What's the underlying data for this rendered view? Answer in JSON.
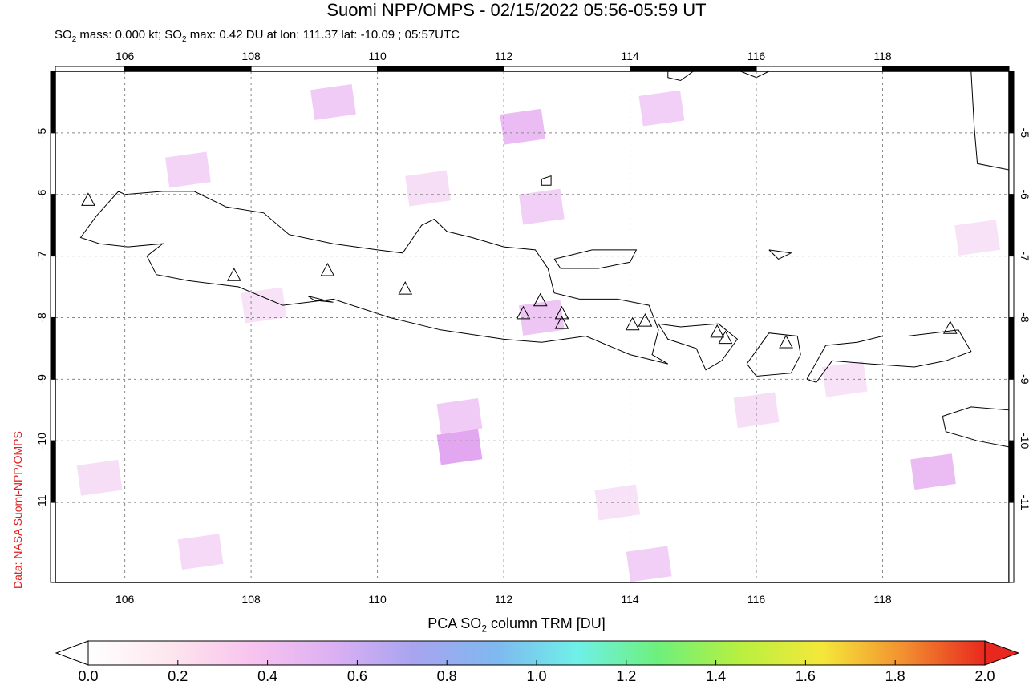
{
  "title": "Suomi NPP/OMPS - 02/15/2022 05:56-05:59 UT",
  "subtitle": {
    "prefix": "SO",
    "sub": "2",
    "mid": " mass: 0.000 kt; SO",
    "sub2": "2",
    "rest": " max: 0.42 DU at lon: 111.37 lat: -10.09 ; 05:57UTC"
  },
  "credit": "Data: NASA Suomi-NPP/OMPS",
  "map": {
    "lon_range": [
      104.9,
      120.0
    ],
    "lat_range": [
      -12.3,
      -4.0
    ],
    "lon_ticks": [
      106,
      108,
      110,
      112,
      114,
      116,
      118
    ],
    "lon_tick_labels": [
      "106",
      "108",
      "110",
      "112",
      "114",
      "116",
      "118"
    ],
    "lat_ticks": [
      -5,
      -6,
      -7,
      -8,
      -9,
      -10,
      -11
    ],
    "lat_tick_labels": [
      "-5",
      "-6",
      "-7",
      "-8",
      "-9",
      "-10",
      "-11"
    ],
    "grid": true,
    "volcanoes": [
      {
        "lon": 105.42,
        "lat": -6.1
      },
      {
        "lon": 107.73,
        "lat": -7.32
      },
      {
        "lon": 109.21,
        "lat": -7.24
      },
      {
        "lon": 110.44,
        "lat": -7.54
      },
      {
        "lon": 112.31,
        "lat": -7.94
      },
      {
        "lon": 112.58,
        "lat": -7.73
      },
      {
        "lon": 112.92,
        "lat": -7.94
      },
      {
        "lon": 112.92,
        "lat": -8.1
      },
      {
        "lon": 114.04,
        "lat": -8.12
      },
      {
        "lon": 114.24,
        "lat": -8.06
      },
      {
        "lon": 115.38,
        "lat": -8.24
      },
      {
        "lon": 115.51,
        "lat": -8.34
      },
      {
        "lon": 116.47,
        "lat": -8.41
      },
      {
        "lon": 119.07,
        "lat": -8.18
      }
    ],
    "pixels": [
      {
        "lon": 107.0,
        "lat": -5.6,
        "v": 0.18
      },
      {
        "lon": 109.3,
        "lat": -4.5,
        "v": 0.22
      },
      {
        "lon": 112.3,
        "lat": -4.9,
        "v": 0.3
      },
      {
        "lon": 112.6,
        "lat": -6.2,
        "v": 0.2
      },
      {
        "lon": 114.5,
        "lat": -4.6,
        "v": 0.2
      },
      {
        "lon": 112.6,
        "lat": -8.0,
        "v": 0.25
      },
      {
        "lon": 111.3,
        "lat": -9.6,
        "v": 0.22
      },
      {
        "lon": 111.3,
        "lat": -10.1,
        "v": 0.42
      },
      {
        "lon": 118.8,
        "lat": -10.5,
        "v": 0.3
      },
      {
        "lon": 107.2,
        "lat": -11.8,
        "v": 0.15
      },
      {
        "lon": 110.8,
        "lat": -5.9,
        "v": 0.12
      },
      {
        "lon": 108.2,
        "lat": -7.8,
        "v": 0.1
      },
      {
        "lon": 116.0,
        "lat": -9.5,
        "v": 0.12
      },
      {
        "lon": 117.4,
        "lat": -9.0,
        "v": 0.1
      },
      {
        "lon": 113.8,
        "lat": -11.0,
        "v": 0.1
      },
      {
        "lon": 105.6,
        "lat": -10.6,
        "v": 0.12
      },
      {
        "lon": 119.5,
        "lat": -6.7,
        "v": 0.1
      },
      {
        "lon": 114.3,
        "lat": -12.0,
        "v": 0.2
      }
    ]
  },
  "colorbar": {
    "title_prefix": "PCA SO",
    "title_sub": "2",
    "title_rest": " column TRM [DU]",
    "range": [
      0.0,
      2.0
    ],
    "tick_labels": [
      "0.0",
      "0.2",
      "0.4",
      "0.6",
      "0.8",
      "1.0",
      "1.2",
      "1.4",
      "1.6",
      "1.8",
      "2.0"
    ],
    "colors": [
      "#ffffff",
      "#fde6ee",
      "#f8c3ee",
      "#dcb0f3",
      "#a8a4f0",
      "#7fb8f0",
      "#6ff0e8",
      "#6ef07c",
      "#b8f040",
      "#f5e83a",
      "#f29030",
      "#e8281e"
    ]
  }
}
